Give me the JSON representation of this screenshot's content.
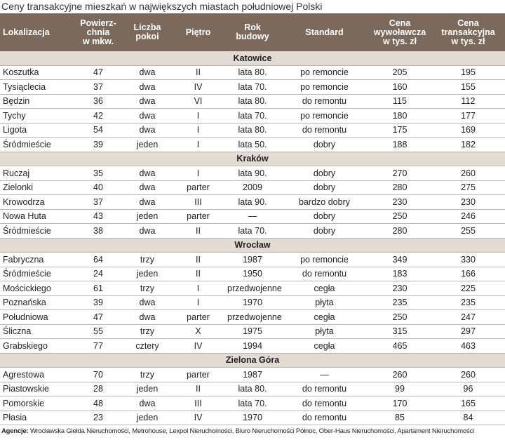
{
  "title": "Ceny transakcyjne mieszkań w największych miastach południowej Polski",
  "columns": [
    "Lokalizacja",
    "Powierz-\nchnia\nw mkw.",
    "Liczba\npokoi",
    "Piętro",
    "Rok\nbudowy",
    "Standard",
    "Cena\nwywoławcza\nw tys. zł",
    "Cena\ntransakcyjna\nw tys. zł"
  ],
  "sections": [
    {
      "name": "Katowice",
      "rows": [
        [
          "Koszutka",
          47,
          "dwa",
          "II",
          "lata 80.",
          "po remoncie",
          205,
          195
        ],
        [
          "Tysiąclecia",
          37,
          "dwa",
          "IV",
          "lata 70.",
          "po remoncie",
          160,
          155
        ],
        [
          "Będzin",
          36,
          "dwa",
          "VI",
          "lata 80.",
          "do remontu",
          115,
          112
        ],
        [
          "Tychy",
          42,
          "dwa",
          "I",
          "lata 70.",
          "po remoncie",
          180,
          177
        ],
        [
          "Ligota",
          54,
          "dwa",
          "I",
          "lata 80.",
          "do remontu",
          175,
          169
        ],
        [
          "Śródmieście",
          39,
          "jeden",
          "I",
          "lata 50.",
          "dobry",
          188,
          182
        ]
      ]
    },
    {
      "name": "Kraków",
      "rows": [
        [
          "Ruczaj",
          35,
          "dwa",
          "I",
          "lata 90.",
          "dobry",
          270,
          260
        ],
        [
          "Zielonki",
          40,
          "dwa",
          "parter",
          "2009",
          "dobry",
          280,
          275
        ],
        [
          "Krowodrza",
          37,
          "dwa",
          "III",
          "lata 90.",
          "bardzo dobry",
          230,
          230
        ],
        [
          "Nowa Huta",
          43,
          "jeden",
          "parter",
          "—",
          "dobry",
          250,
          246
        ],
        [
          "Śródmieście",
          38,
          "dwa",
          "II",
          "lata 70.",
          "dobry",
          280,
          255
        ]
      ]
    },
    {
      "name": "Wrocław",
      "rows": [
        [
          "Fabryczna",
          64,
          "trzy",
          "II",
          "1987",
          "po remoncie",
          349,
          330
        ],
        [
          "Śródmieście",
          24,
          "jeden",
          "II",
          "1950",
          "do remontu",
          183,
          166
        ],
        [
          "Mościckiego",
          61,
          "trzy",
          "I",
          "przedwojenne",
          "cegła",
          230,
          225
        ],
        [
          "Poznańska",
          39,
          "dwa",
          "I",
          "1970",
          "płyta",
          235,
          235
        ],
        [
          "Południowa",
          47,
          "dwa",
          "parter",
          "przedwojenne",
          "cegła",
          250,
          247
        ],
        [
          "Śliczna",
          55,
          "trzy",
          "X",
          "1975",
          "płyta",
          315,
          297
        ],
        [
          "Grabskiego",
          77,
          "cztery",
          "IV",
          "1994",
          "cegła",
          465,
          463
        ]
      ]
    },
    {
      "name": "Zielona Góra",
      "rows": [
        [
          "Agrestowa",
          70,
          "trzy",
          "parter",
          "1987",
          "—",
          260,
          260
        ],
        [
          "Piastowskie",
          28,
          "jeden",
          "II",
          "lata 80.",
          "do remontu",
          99,
          96
        ],
        [
          "Pomorskie",
          48,
          "dwa",
          "III",
          "lata 70.",
          "do remontu",
          170,
          165
        ],
        [
          "Płasia",
          23,
          "jeden",
          "IV",
          "1970",
          "do remontu",
          85,
          84
        ]
      ]
    }
  ],
  "footer": {
    "label": "Agencje:",
    "text": "Wrocławska Giełda Nieruchomości, Metrohouse, Lexpol Nieruchomości, Biuro Nieruchomości Północ, Ober-Haus Nieruchomości, Apartament Nieruchomości"
  }
}
